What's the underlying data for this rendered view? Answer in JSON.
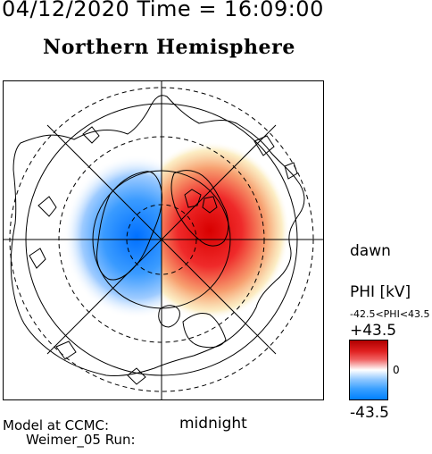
{
  "header": {
    "datetime": "04/12/2020 Time = 16:09:00",
    "hemisphere": "Northern Hemisphere"
  },
  "map": {
    "orientation_labels": {
      "dawn": "dawn",
      "midnight": "midnight"
    },
    "potential_cells": [
      {
        "name": "dusk cell",
        "sign": "negative",
        "color": "#0080ff"
      },
      {
        "name": "dawn cell",
        "sign": "positive",
        "color": "#e00000"
      }
    ]
  },
  "colorbar": {
    "title": "PHI [kV]",
    "range_text": "-42.5<PHI<43.5",
    "max_label": "+43.5",
    "zero_label": "0",
    "min_label": "-43.5",
    "high_color": "#b00000",
    "low_color": "#0080ff"
  },
  "footer": {
    "model_label": "Model at CCMC:",
    "run_label": "Weimer_05 Run:"
  }
}
